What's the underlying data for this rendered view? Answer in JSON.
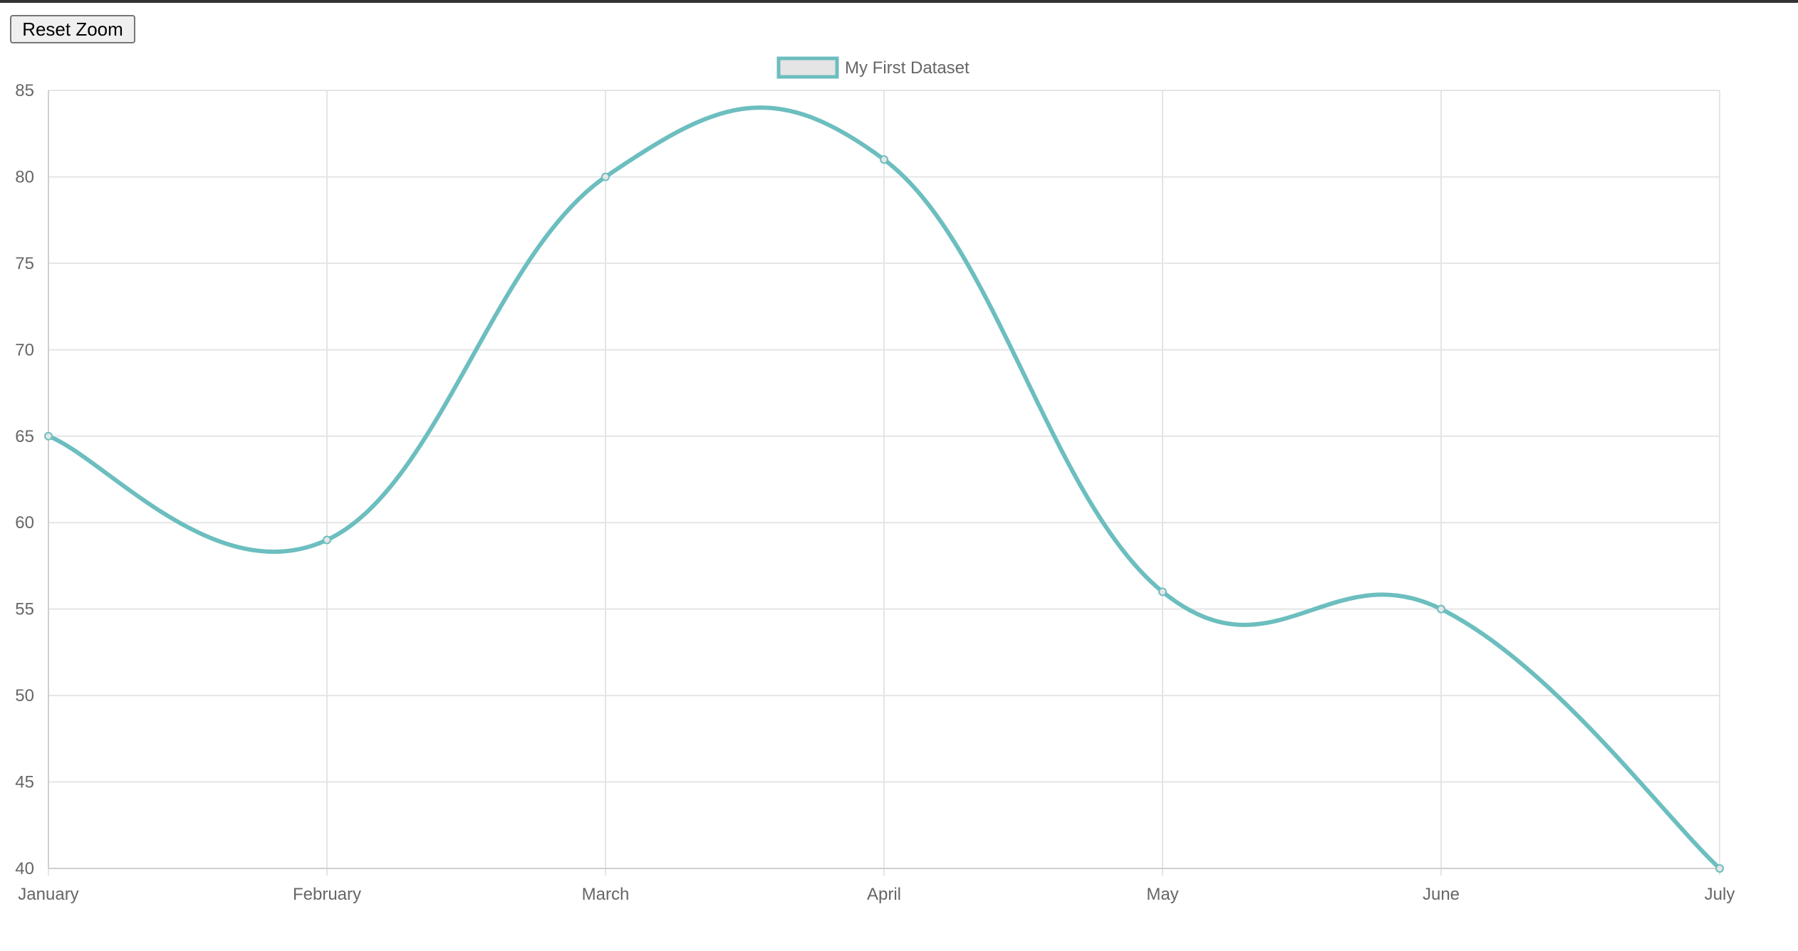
{
  "toolbar": {
    "reset_zoom_label": "Reset Zoom"
  },
  "colors": {
    "series_line": "#6cbebf",
    "legend_fill": "#e5e5e5",
    "grid": "#e5e5e5",
    "tick_text": "#666666"
  },
  "chart_data": {
    "type": "line",
    "categories": [
      "January",
      "February",
      "March",
      "April",
      "May",
      "June",
      "July"
    ],
    "series": [
      {
        "name": "My First Dataset",
        "values": [
          65,
          59,
          80,
          81,
          56,
          55,
          40
        ]
      }
    ],
    "yticks": [
      85,
      80,
      75,
      70,
      65,
      60,
      55,
      50,
      45,
      40
    ],
    "ylim": [
      40,
      85
    ],
    "grid": true,
    "legend_position": "top-center",
    "curve": "smooth"
  }
}
